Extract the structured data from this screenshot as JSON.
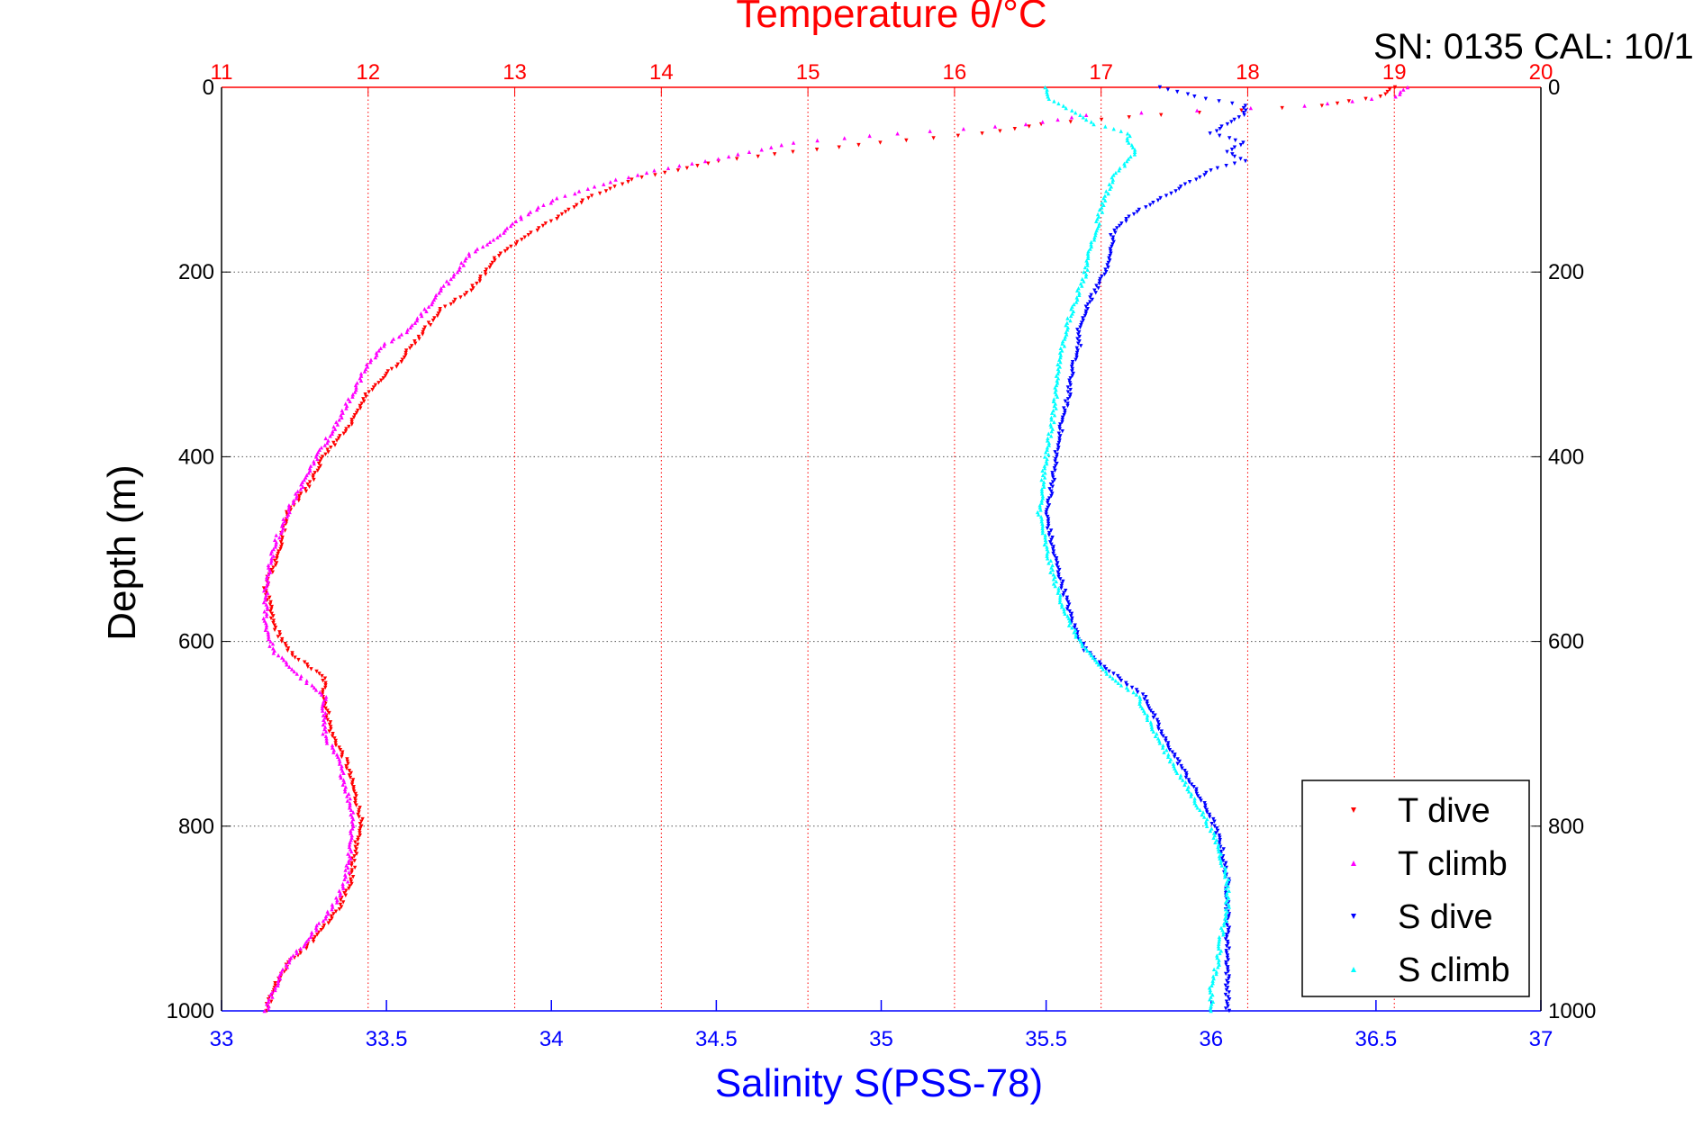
{
  "chart_data": {
    "type": "scatter",
    "title": "Temperature θ/°C",
    "annotation": "SN: 0135  CAL: 10/1",
    "xlabel": "Salinity S(PSS-78)",
    "ylabel": "Depth (m)",
    "y_axis": {
      "range": [
        0,
        1000
      ],
      "reversed": true,
      "ticks": [
        "0",
        "200",
        "400",
        "600",
        "800",
        "1000"
      ],
      "tick_values": [
        0,
        200,
        400,
        600,
        800,
        1000
      ]
    },
    "x_top_axis": {
      "name": "Temperature",
      "range": [
        11,
        20
      ],
      "ticks": [
        "11",
        "12",
        "13",
        "14",
        "15",
        "16",
        "17",
        "18",
        "19",
        "20"
      ],
      "tick_values": [
        11,
        12,
        13,
        14,
        15,
        16,
        17,
        18,
        19,
        20
      ],
      "color": "#ff0000",
      "grid": "vertical dotted"
    },
    "x_bottom_axis": {
      "name": "Salinity",
      "range": [
        33,
        37
      ],
      "ticks": [
        "33",
        "33.5",
        "34",
        "34.5",
        "35",
        "35.5",
        "36",
        "36.5",
        "37"
      ],
      "tick_values": [
        33,
        33.5,
        34,
        34.5,
        35,
        35.5,
        36,
        36.5,
        37
      ],
      "color": "#0000ff"
    },
    "grid": {
      "horizontal": true,
      "vertical": true
    },
    "legend_position": "bottom-right",
    "series": [
      {
        "name": "T dive",
        "axis": "top",
        "marker": "triangle-down",
        "color": "#ff0000",
        "profile": [
          [
            0,
            19.0
          ],
          [
            10,
            18.9
          ],
          [
            20,
            18.5
          ],
          [
            30,
            17.4
          ],
          [
            40,
            16.6
          ],
          [
            50,
            16.2
          ],
          [
            60,
            15.5
          ],
          [
            70,
            14.9
          ],
          [
            80,
            14.4
          ],
          [
            90,
            14.1
          ],
          [
            100,
            13.8
          ],
          [
            120,
            13.5
          ],
          [
            140,
            13.3
          ],
          [
            160,
            13.1
          ],
          [
            180,
            12.9
          ],
          [
            200,
            12.8
          ],
          [
            220,
            12.7
          ],
          [
            240,
            12.5
          ],
          [
            260,
            12.4
          ],
          [
            280,
            12.3
          ],
          [
            300,
            12.2
          ],
          [
            330,
            12.0
          ],
          [
            360,
            11.9
          ],
          [
            400,
            11.7
          ],
          [
            430,
            11.6
          ],
          [
            460,
            11.45
          ],
          [
            500,
            11.4
          ],
          [
            540,
            11.3
          ],
          [
            580,
            11.35
          ],
          [
            610,
            11.45
          ],
          [
            640,
            11.7
          ],
          [
            660,
            11.7
          ],
          [
            700,
            11.75
          ],
          [
            730,
            11.85
          ],
          [
            760,
            11.9
          ],
          [
            790,
            11.95
          ],
          [
            820,
            11.92
          ],
          [
            860,
            11.88
          ],
          [
            890,
            11.8
          ],
          [
            920,
            11.65
          ],
          [
            950,
            11.45
          ],
          [
            970,
            11.38
          ],
          [
            1000,
            11.3
          ]
        ]
      },
      {
        "name": "T climb",
        "axis": "top",
        "marker": "triangle-up",
        "color": "#ff00ff",
        "profile": [
          [
            0,
            19.1
          ],
          [
            10,
            19.0
          ],
          [
            20,
            18.4
          ],
          [
            30,
            16.9
          ],
          [
            40,
            16.5
          ],
          [
            50,
            15.6
          ],
          [
            60,
            14.9
          ],
          [
            70,
            14.6
          ],
          [
            80,
            14.3
          ],
          [
            90,
            13.95
          ],
          [
            100,
            13.7
          ],
          [
            120,
            13.3
          ],
          [
            140,
            13.05
          ],
          [
            160,
            12.9
          ],
          [
            180,
            12.7
          ],
          [
            200,
            12.6
          ],
          [
            220,
            12.5
          ],
          [
            240,
            12.4
          ],
          [
            260,
            12.3
          ],
          [
            280,
            12.1
          ],
          [
            300,
            12.0
          ],
          [
            330,
            11.9
          ],
          [
            360,
            11.8
          ],
          [
            400,
            11.65
          ],
          [
            430,
            11.55
          ],
          [
            460,
            11.45
          ],
          [
            500,
            11.35
          ],
          [
            540,
            11.3
          ],
          [
            580,
            11.3
          ],
          [
            610,
            11.35
          ],
          [
            640,
            11.55
          ],
          [
            660,
            11.7
          ],
          [
            700,
            11.7
          ],
          [
            730,
            11.8
          ],
          [
            760,
            11.85
          ],
          [
            790,
            11.9
          ],
          [
            820,
            11.88
          ],
          [
            860,
            11.85
          ],
          [
            890,
            11.75
          ],
          [
            920,
            11.6
          ],
          [
            950,
            11.45
          ],
          [
            970,
            11.38
          ],
          [
            1000,
            11.3
          ]
        ]
      },
      {
        "name": "S dive",
        "axis": "bottom",
        "marker": "triangle-down",
        "color": "#0000ff",
        "profile": [
          [
            0,
            35.85
          ],
          [
            10,
            35.95
          ],
          [
            20,
            36.1
          ],
          [
            30,
            36.1
          ],
          [
            40,
            36.05
          ],
          [
            50,
            36.0
          ],
          [
            60,
            36.1
          ],
          [
            70,
            36.05
          ],
          [
            80,
            36.1
          ],
          [
            90,
            36.0
          ],
          [
            100,
            35.95
          ],
          [
            120,
            35.85
          ],
          [
            140,
            35.75
          ],
          [
            160,
            35.7
          ],
          [
            180,
            35.7
          ],
          [
            200,
            35.68
          ],
          [
            220,
            35.65
          ],
          [
            240,
            35.62
          ],
          [
            260,
            35.6
          ],
          [
            280,
            35.6
          ],
          [
            300,
            35.58
          ],
          [
            330,
            35.57
          ],
          [
            360,
            35.55
          ],
          [
            400,
            35.53
          ],
          [
            430,
            35.52
          ],
          [
            460,
            35.5
          ],
          [
            500,
            35.52
          ],
          [
            540,
            35.55
          ],
          [
            580,
            35.58
          ],
          [
            610,
            35.62
          ],
          [
            640,
            35.72
          ],
          [
            660,
            35.8
          ],
          [
            700,
            35.85
          ],
          [
            730,
            35.9
          ],
          [
            760,
            35.95
          ],
          [
            790,
            36.0
          ],
          [
            820,
            36.03
          ],
          [
            860,
            36.05
          ],
          [
            890,
            36.05
          ],
          [
            920,
            36.05
          ],
          [
            950,
            36.05
          ],
          [
            970,
            36.05
          ],
          [
            1000,
            36.05
          ]
        ]
      },
      {
        "name": "S climb",
        "axis": "bottom",
        "marker": "triangle-up",
        "color": "#00ffff",
        "profile": [
          [
            0,
            35.5
          ],
          [
            10,
            35.5
          ],
          [
            20,
            35.55
          ],
          [
            30,
            35.6
          ],
          [
            40,
            35.65
          ],
          [
            50,
            35.75
          ],
          [
            60,
            35.75
          ],
          [
            70,
            35.77
          ],
          [
            80,
            35.75
          ],
          [
            90,
            35.72
          ],
          [
            100,
            35.7
          ],
          [
            120,
            35.68
          ],
          [
            140,
            35.66
          ],
          [
            160,
            35.65
          ],
          [
            180,
            35.63
          ],
          [
            200,
            35.62
          ],
          [
            220,
            35.6
          ],
          [
            240,
            35.58
          ],
          [
            260,
            35.56
          ],
          [
            280,
            35.55
          ],
          [
            300,
            35.54
          ],
          [
            330,
            35.53
          ],
          [
            360,
            35.52
          ],
          [
            400,
            35.5
          ],
          [
            430,
            35.49
          ],
          [
            460,
            35.48
          ],
          [
            500,
            35.5
          ],
          [
            540,
            35.53
          ],
          [
            580,
            35.57
          ],
          [
            610,
            35.62
          ],
          [
            640,
            35.7
          ],
          [
            660,
            35.78
          ],
          [
            700,
            35.83
          ],
          [
            730,
            35.88
          ],
          [
            760,
            35.93
          ],
          [
            790,
            35.98
          ],
          [
            820,
            36.02
          ],
          [
            860,
            36.05
          ],
          [
            890,
            36.05
          ],
          [
            920,
            36.03
          ],
          [
            950,
            36.02
          ],
          [
            970,
            36.0
          ],
          [
            1000,
            36.0
          ]
        ]
      }
    ],
    "legend": [
      "T dive",
      "T climb",
      "S dive",
      "S climb"
    ]
  }
}
